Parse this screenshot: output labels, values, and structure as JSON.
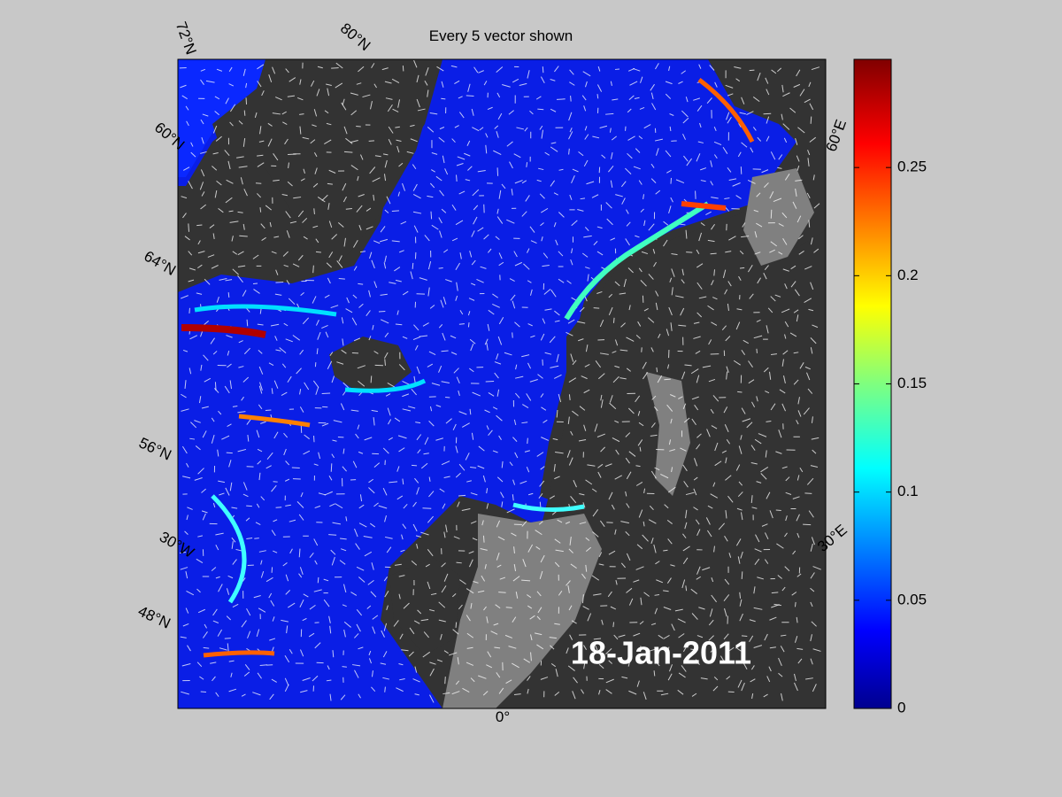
{
  "title": "Every 5 vector shown",
  "date": "18-Jan-2011",
  "geo_labels": [
    "72°N",
    "80°N",
    "60°N",
    "64°N",
    "56°N",
    "30°W",
    "48°N",
    "60°E",
    "30°E",
    "0°"
  ],
  "colorbar": {
    "lim": [
      0,
      0.3
    ],
    "ticks": [
      0,
      0.05,
      0.1,
      0.15,
      0.2,
      0.25
    ]
  }
}
